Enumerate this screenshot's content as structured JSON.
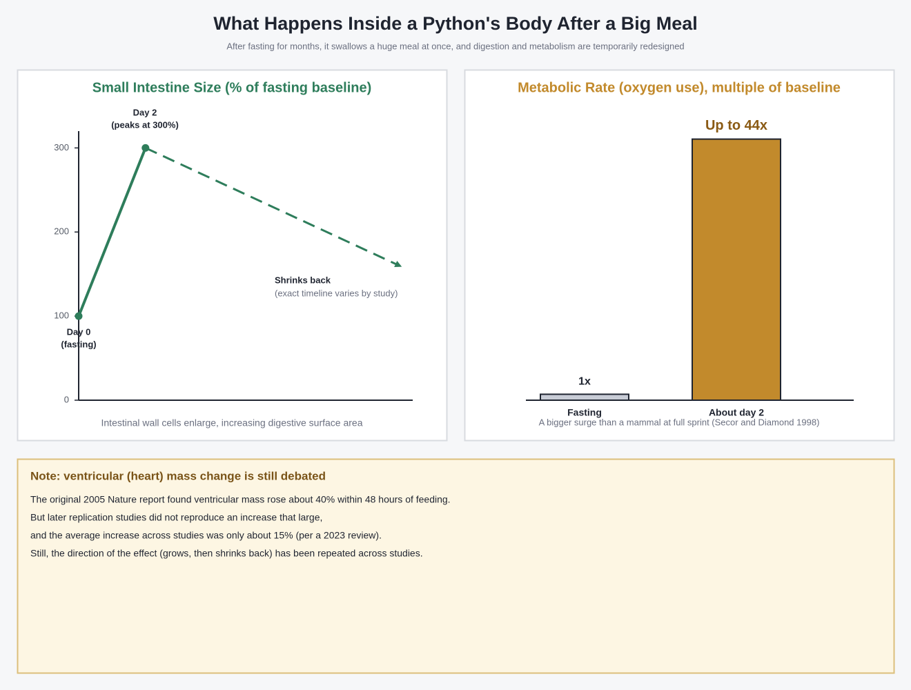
{
  "header": {
    "title": "What Happens Inside a Python's Body After a Big Meal",
    "subtitle": "After fasting for months, it swallows a huge meal at once, and digestion and metabolism are temporarily redesigned"
  },
  "chart_data": [
    {
      "type": "line",
      "title": "Small Intestine Size (% of fasting baseline)",
      "title_color": "#2e7d5b",
      "series": [
        {
          "color": "#2e7d5b",
          "x": [
            0,
            2
          ],
          "values": [
            100,
            300
          ],
          "style": "solid",
          "markers": true
        },
        {
          "color": "#2e7d5b",
          "x": [
            2,
            9.6
          ],
          "values": [
            300,
            160
          ],
          "style": "dashed",
          "arrow": true
        }
      ],
      "xlim": [
        0,
        10
      ],
      "ylim": [
        0,
        320
      ],
      "yticks": [
        0,
        100,
        200,
        300
      ],
      "annotations": [
        [
          "Day 2",
          "(peaks at 300%)"
        ],
        [
          "Day 0",
          "(fasting)"
        ],
        [
          "Shrinks back",
          "(exact timeline varies by study)"
        ]
      ],
      "caption": "Intestinal wall cells enlarge, increasing digestive surface area"
    },
    {
      "type": "bar",
      "title": "Metabolic Rate (oxygen use), multiple of baseline",
      "title_color": "#c28a2c",
      "categories": [
        "Fasting",
        "About day 2"
      ],
      "values": [
        1,
        44
      ],
      "value_labels": [
        "1x",
        "Up to 44x"
      ],
      "colors": [
        "#c8ccd6",
        "#c28a2c"
      ],
      "ylim": [
        0,
        50
      ],
      "caption": "A bigger surge than a mammal at full sprint (Secor and Diamond 1998)"
    }
  ],
  "note": {
    "title": "Note: ventricular (heart) mass change is still debated",
    "lines": [
      "The original 2005 Nature report found ventricular mass rose about 40% within 48 hours of feeding.",
      "But later replication studies did not reproduce an increase that large,",
      "and the average increase across studies was only about 15% (per a 2023 review).",
      "Still, the direction of the effect (grows, then shrinks back) has been repeated across studies."
    ]
  }
}
